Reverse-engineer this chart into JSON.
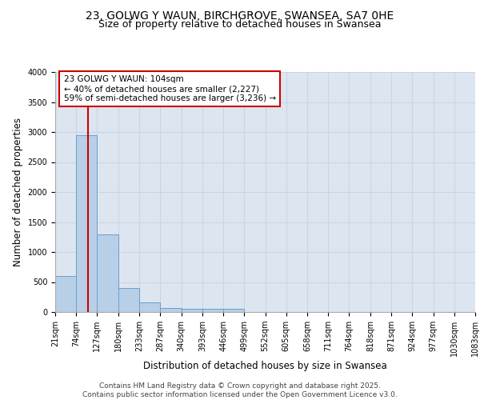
{
  "title_line1": "23, GOLWG Y WAUN, BIRCHGROVE, SWANSEA, SA7 0HE",
  "title_line2": "Size of property relative to detached houses in Swansea",
  "xlabel": "Distribution of detached houses by size in Swansea",
  "ylabel": "Number of detached properties",
  "bar_edges": [
    21,
    74,
    127,
    180,
    233,
    287,
    340,
    393,
    446,
    499,
    552,
    605,
    658,
    711,
    764,
    818,
    871,
    924,
    977,
    1030,
    1083
  ],
  "bar_heights": [
    600,
    2950,
    1300,
    400,
    160,
    70,
    50,
    50,
    50,
    0,
    0,
    0,
    0,
    0,
    0,
    0,
    0,
    0,
    0,
    0
  ],
  "bar_color": "#b8cfe8",
  "bar_edgecolor": "#6aa0cc",
  "vline_x": 104,
  "vline_color": "#cc0000",
  "annotation_text": "23 GOLWG Y WAUN: 104sqm\n← 40% of detached houses are smaller (2,227)\n59% of semi-detached houses are larger (3,236) →",
  "annotation_box_color": "#cc0000",
  "ylim": [
    0,
    4000
  ],
  "yticks": [
    0,
    500,
    1000,
    1500,
    2000,
    2500,
    3000,
    3500,
    4000
  ],
  "tick_labels": [
    "21sqm",
    "74sqm",
    "127sqm",
    "180sqm",
    "233sqm",
    "287sqm",
    "340sqm",
    "393sqm",
    "446sqm",
    "499sqm",
    "552sqm",
    "605sqm",
    "658sqm",
    "711sqm",
    "764sqm",
    "818sqm",
    "871sqm",
    "924sqm",
    "977sqm",
    "1030sqm",
    "1083sqm"
  ],
  "grid_color": "#c8d4e8",
  "bg_color": "#dde6f0",
  "footer_text": "Contains HM Land Registry data © Crown copyright and database right 2025.\nContains public sector information licensed under the Open Government Licence v3.0.",
  "title_fontsize": 10,
  "subtitle_fontsize": 9,
  "axis_label_fontsize": 8.5,
  "tick_fontsize": 7,
  "annotation_fontsize": 7.5,
  "footer_fontsize": 6.5
}
